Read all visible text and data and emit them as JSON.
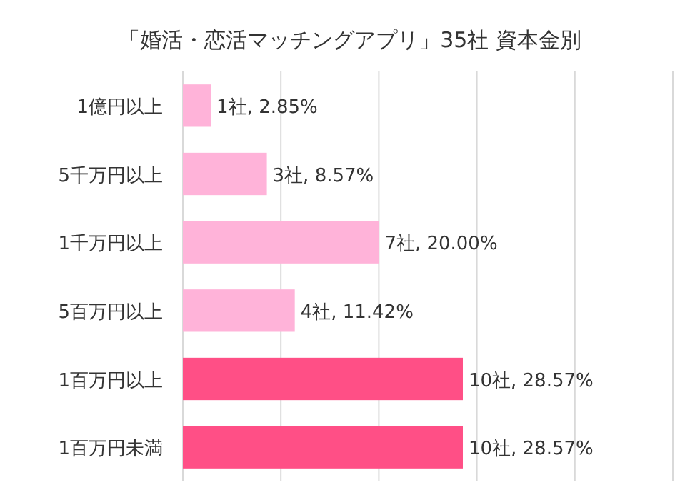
{
  "chart_data": {
    "type": "bar",
    "orientation": "horizontal",
    "title": "「婚活・恋活マッチングアプリ」35社 資本金別",
    "categories": [
      "1億円以上",
      "5千万円以上",
      "1千万円以上",
      "5百万円以上",
      "1百万円以上",
      "1百万円未満"
    ],
    "values": [
      2.85,
      8.57,
      20.0,
      11.42,
      28.57,
      28.57
    ],
    "value_labels": [
      "1社, 2.85%",
      "3社, 8.57%",
      "7社, 20.00%",
      "4社, 11.42%",
      "10社, 28.57%",
      "10社, 28.57%"
    ],
    "colors": [
      "#ffb3d9",
      "#ffb3d9",
      "#ffb3d9",
      "#ffb3d9",
      "#ff4f86",
      "#ff4f86"
    ],
    "xlim": [
      0,
      50
    ],
    "xticks": [
      {
        "value": 0,
        "label": null
      },
      {
        "value": 10,
        "label": null
      },
      {
        "value": 20,
        "label": null
      },
      {
        "value": 30,
        "label": null
      },
      {
        "value": 40,
        "label": null
      },
      {
        "value": 50,
        "label": null
      }
    ],
    "tick_labels": "y",
    "grid": "x"
  }
}
